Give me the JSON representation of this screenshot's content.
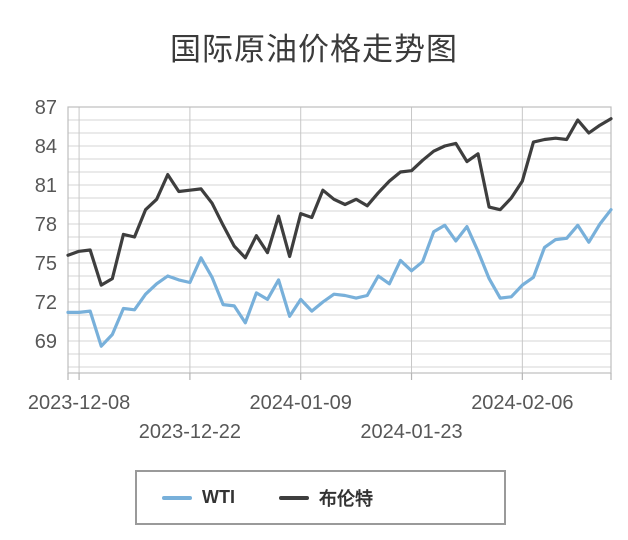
{
  "title": "国际原油价格走势图",
  "colors": {
    "background": "#ffffff",
    "grid_minor": "#d6d6d6",
    "grid_major_vertical": "#c7c7c7",
    "plot_border": "#bdbdbd",
    "axis_tick": "#b5b5b5",
    "axis_label": "#575757",
    "title_text": "#3b3b3b",
    "legend_border": "#9a9a9a",
    "legend_text": "#333333",
    "wti_line": "#78b0da",
    "brent_line": "#3e3e3e"
  },
  "legend": {
    "items": [
      {
        "label": "WTI",
        "color": "#78b0da"
      },
      {
        "label": "布伦特",
        "color": "#3e3e3e"
      }
    ]
  },
  "chart_data": {
    "type": "line",
    "title": "国际原油价格走势图",
    "xlabel": "",
    "ylabel": "",
    "ylim": [
      66.5,
      87
    ],
    "yticks": [
      87,
      84,
      81,
      78,
      75,
      72,
      69
    ],
    "minor_grid_step": 1,
    "grid": true,
    "legend_position": "bottom",
    "xtick_indices": [
      1,
      11,
      21,
      31,
      41
    ],
    "xtick_labels": [
      "2023-12-08",
      "2023-12-22",
      "2024-01-09",
      "2024-01-23",
      "2024-02-06"
    ],
    "x": [
      "2023-12-07",
      "2023-12-08",
      "2023-12-11",
      "2023-12-12",
      "2023-12-13",
      "2023-12-14",
      "2023-12-15",
      "2023-12-18",
      "2023-12-19",
      "2023-12-20",
      "2023-12-21",
      "2023-12-22",
      "2023-12-26",
      "2023-12-27",
      "2023-12-28",
      "2023-12-29",
      "2024-01-02",
      "2024-01-03",
      "2024-01-04",
      "2024-01-05",
      "2024-01-08",
      "2024-01-09",
      "2024-01-10",
      "2024-01-11",
      "2024-01-12",
      "2024-01-15",
      "2024-01-16",
      "2024-01-17",
      "2024-01-18",
      "2024-01-19",
      "2024-01-22",
      "2024-01-23",
      "2024-01-24",
      "2024-01-25",
      "2024-01-26",
      "2024-01-29",
      "2024-01-30",
      "2024-01-31",
      "2024-02-01",
      "2024-02-02",
      "2024-02-05",
      "2024-02-06",
      "2024-02-07",
      "2024-02-08",
      "2024-02-09",
      "2024-02-12",
      "2024-02-13",
      "2024-02-14",
      "2024-02-15",
      "2024-02-16"
    ],
    "series": [
      {
        "name": "WTI",
        "color": "#78b0da",
        "values": [
          71.2,
          71.2,
          71.3,
          68.6,
          69.5,
          71.5,
          71.4,
          72.6,
          73.4,
          74.0,
          73.7,
          73.5,
          75.4,
          73.9,
          71.8,
          71.7,
          70.4,
          72.7,
          72.2,
          73.7,
          70.9,
          72.2,
          71.3,
          72.0,
          72.6,
          72.5,
          72.3,
          72.5,
          74.0,
          73.4,
          75.2,
          74.4,
          75.1,
          77.4,
          77.9,
          76.7,
          77.8,
          75.9,
          73.8,
          72.3,
          72.4,
          73.3,
          73.9,
          76.2,
          76.8,
          76.9,
          77.9,
          76.6,
          78.0,
          79.1
        ]
      },
      {
        "name": "布伦特",
        "color": "#3e3e3e",
        "values": [
          75.6,
          75.9,
          76.0,
          73.3,
          73.8,
          77.2,
          77.0,
          79.1,
          79.9,
          81.8,
          80.5,
          80.6,
          80.7,
          79.6,
          77.9,
          76.3,
          75.4,
          77.1,
          75.8,
          78.6,
          75.5,
          78.8,
          78.5,
          80.6,
          79.9,
          79.5,
          79.9,
          79.4,
          80.4,
          81.3,
          82.0,
          82.1,
          82.9,
          83.6,
          84.0,
          84.2,
          82.8,
          83.4,
          79.3,
          79.1,
          80.0,
          81.3,
          84.3,
          84.5,
          84.6,
          84.5,
          86.0,
          85.0,
          85.6,
          86.1
        ]
      }
    ]
  }
}
